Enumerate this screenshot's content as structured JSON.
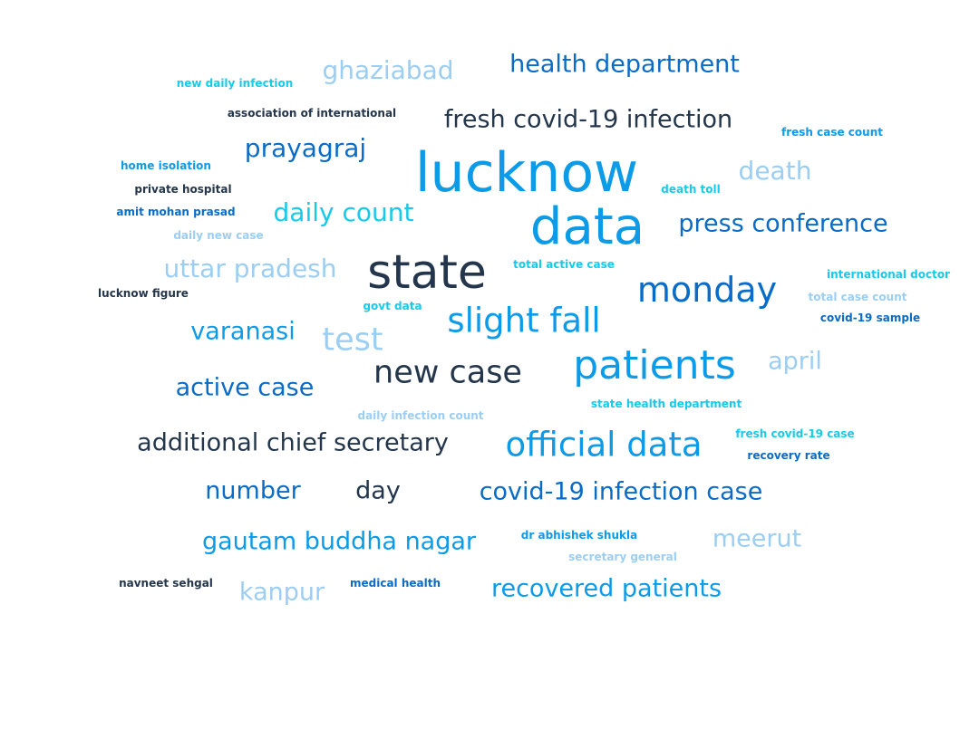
{
  "palette": {
    "navy": "#24364b",
    "blue": "#0a6cc6",
    "azure": "#0d9be8",
    "sky": "#9ccef3",
    "cyan": "#16cbe9"
  },
  "words": [
    {
      "text": "lucknow",
      "color": "azure"
    },
    {
      "text": "data",
      "color": "azure"
    },
    {
      "text": "state",
      "color": "navy"
    },
    {
      "text": "patients",
      "color": "azure"
    },
    {
      "text": "monday",
      "color": "blue"
    },
    {
      "text": "official data",
      "color": "azure"
    },
    {
      "text": "slight fall",
      "color": "azure"
    },
    {
      "text": "new case",
      "color": "navy"
    },
    {
      "text": "test",
      "color": "sky"
    },
    {
      "text": "health department",
      "color": "blue"
    },
    {
      "text": "fresh covid-19 infection",
      "color": "navy"
    },
    {
      "text": "press conference",
      "color": "blue"
    },
    {
      "text": "ghaziabad",
      "color": "sky"
    },
    {
      "text": "prayagraj",
      "color": "blue"
    },
    {
      "text": "death",
      "color": "sky"
    },
    {
      "text": "daily count",
      "color": "cyan"
    },
    {
      "text": "uttar pradesh",
      "color": "sky"
    },
    {
      "text": "varanasi",
      "color": "azure"
    },
    {
      "text": "active case",
      "color": "blue"
    },
    {
      "text": "april",
      "color": "sky"
    },
    {
      "text": "additional chief secretary",
      "color": "navy"
    },
    {
      "text": "number",
      "color": "blue"
    },
    {
      "text": "day",
      "color": "navy"
    },
    {
      "text": "covid-19 infection case",
      "color": "blue"
    },
    {
      "text": "gautam buddha nagar",
      "color": "azure"
    },
    {
      "text": "meerut",
      "color": "sky"
    },
    {
      "text": "kanpur",
      "color": "sky"
    },
    {
      "text": "recovered patients",
      "color": "azure"
    },
    {
      "text": "new daily infection",
      "color": "cyan"
    },
    {
      "text": "association of international",
      "color": "navy"
    },
    {
      "text": "fresh case count",
      "color": "azure"
    },
    {
      "text": "home isolation",
      "color": "azure"
    },
    {
      "text": "private hospital",
      "color": "navy"
    },
    {
      "text": "death toll",
      "color": "cyan"
    },
    {
      "text": "amit mohan prasad",
      "color": "blue"
    },
    {
      "text": "daily new case",
      "color": "sky"
    },
    {
      "text": "total active case",
      "color": "cyan"
    },
    {
      "text": "international doctor",
      "color": "cyan"
    },
    {
      "text": "lucknow figure",
      "color": "navy"
    },
    {
      "text": "total case count",
      "color": "sky"
    },
    {
      "text": "govt data",
      "color": "cyan"
    },
    {
      "text": "covid-19 sample",
      "color": "blue"
    },
    {
      "text": "state health department",
      "color": "cyan"
    },
    {
      "text": "daily infection count",
      "color": "sky"
    },
    {
      "text": "fresh covid-19 case",
      "color": "cyan"
    },
    {
      "text": "recovery rate",
      "color": "blue"
    },
    {
      "text": "dr abhishek shukla",
      "color": "azure"
    },
    {
      "text": "secretary general",
      "color": "sky"
    },
    {
      "text": "navneet sehgal",
      "color": "navy"
    },
    {
      "text": "medical health",
      "color": "blue"
    }
  ]
}
